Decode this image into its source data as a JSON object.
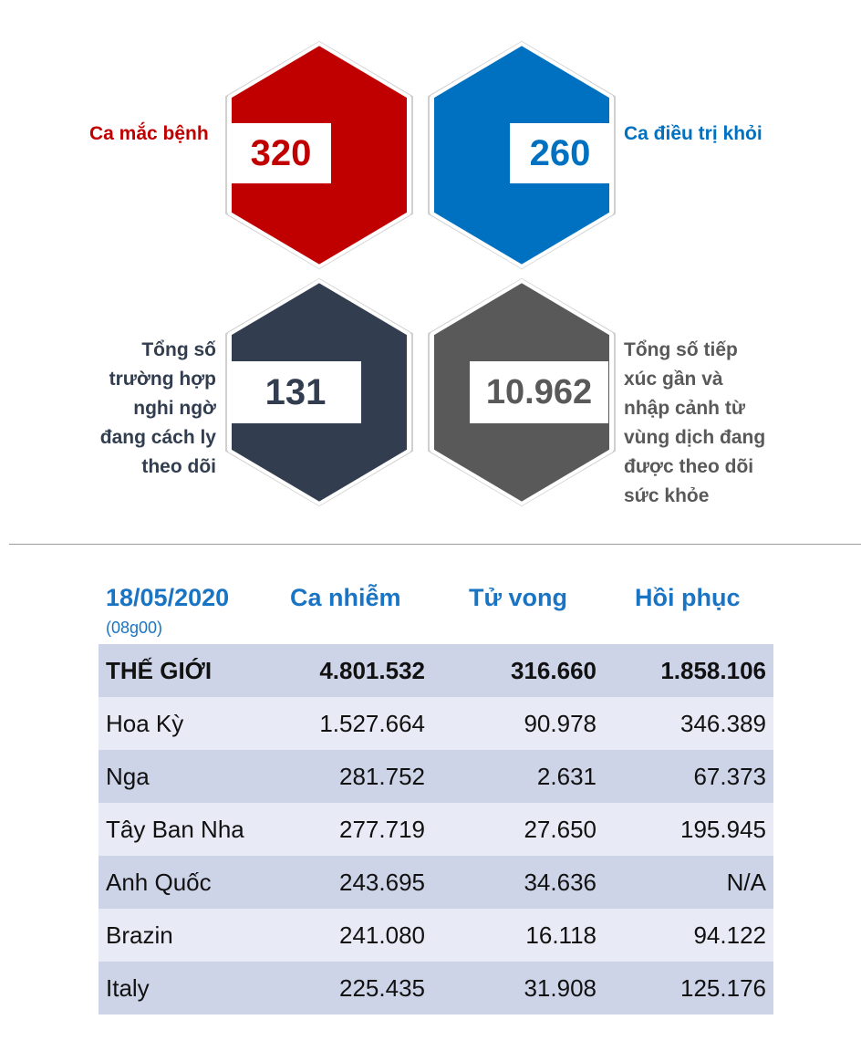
{
  "stats": {
    "infected": {
      "label": "Ca mắc bệnh",
      "value": "320",
      "color": "#c00000"
    },
    "recovered": {
      "label": "Ca điều trị khỏi",
      "value": "260",
      "color": "#0070c0"
    },
    "suspected": {
      "label_lines": [
        "Tổng số",
        "trường hợp",
        "nghi ngờ",
        "đang cách ly",
        "theo dõi"
      ],
      "value": "131",
      "color": "#323e4f"
    },
    "monitored": {
      "label_lines": [
        "Tổng số tiếp",
        "xúc gần và",
        "nhập cảnh từ",
        "vùng dịch đang",
        "được theo dõi",
        "sức khỏe"
      ],
      "value": "10.962",
      "color": "#595959"
    }
  },
  "table": {
    "header": {
      "date": "18/05/2020",
      "time": "(08g00)",
      "col1": "Ca nhiễm",
      "col2": "Tử vong",
      "col3": "Hồi phục"
    },
    "rows": [
      [
        "THẾ GIỚI",
        "4.801.532",
        "316.660",
        "1.858.106"
      ],
      [
        "Hoa Kỳ",
        "1.527.664",
        "90.978",
        "346.389"
      ],
      [
        "Nga",
        "281.752",
        "2.631",
        "67.373"
      ],
      [
        "Tây Ban Nha",
        "277.719",
        "27.650",
        "195.945"
      ],
      [
        "Anh Quốc",
        "243.695",
        "34.636",
        "N/A"
      ],
      [
        "Brazin",
        "241.080",
        "16.118",
        "94.122"
      ],
      [
        "Italy",
        "225.435",
        "31.908",
        "125.176"
      ]
    ]
  }
}
